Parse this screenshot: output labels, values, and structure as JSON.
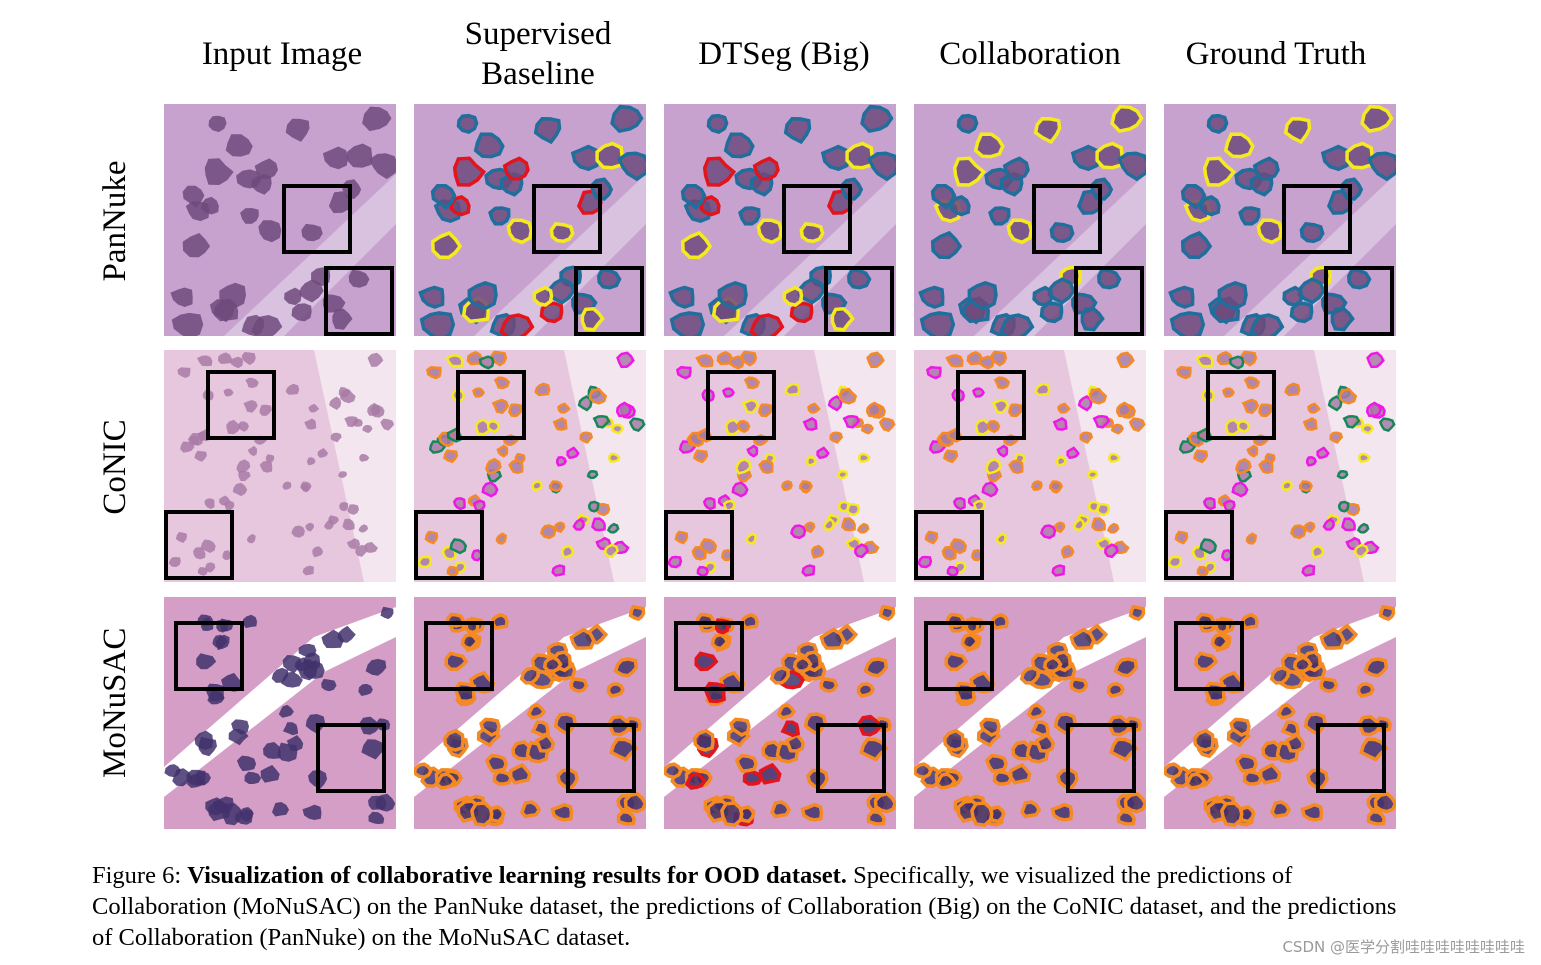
{
  "columns": [
    {
      "lines": [
        "Input Image"
      ]
    },
    {
      "lines": [
        "Supervised",
        "Baseline"
      ]
    },
    {
      "lines": [
        "DTSeg (Big)"
      ]
    },
    {
      "lines": [
        "Collaboration"
      ]
    },
    {
      "lines": [
        "Ground Truth"
      ]
    }
  ],
  "rows": [
    {
      "label": "PanNuke",
      "tissue": "#c8a2cf",
      "nucleus": "#6e4a7c",
      "seed": 7
    },
    {
      "label": "CoNIC",
      "tissue": "#e7c7de",
      "nucleus": "#a87aa6",
      "seed": 19
    },
    {
      "label": "MoNuSAC",
      "tissue": "#d59ec6",
      "nucleus": "#42316c",
      "seed": 31
    }
  ],
  "contour_colors": {
    "blue": "#1f6e9c",
    "yellow": "#f5ea1e",
    "red": "#e3141c",
    "magenta": "#f016e8",
    "orange": "#f58a23",
    "green": "#16875a"
  },
  "caption": {
    "prefix": "Figure 6: ",
    "bold": "Visualization of collaborative learning results for OOD dataset.",
    "rest": " Specifically, we visualized the predictions of Collaboration (MoNuSAC) on the PanNuke dataset, the predictions of Collaboration (Big) on the CoNIC dataset, and the predictions of Collaboration (PanNuke) on the MoNuSAC dataset."
  },
  "watermark": "CSDN @医学分割哇哇哇哇哇哇哇哇"
}
